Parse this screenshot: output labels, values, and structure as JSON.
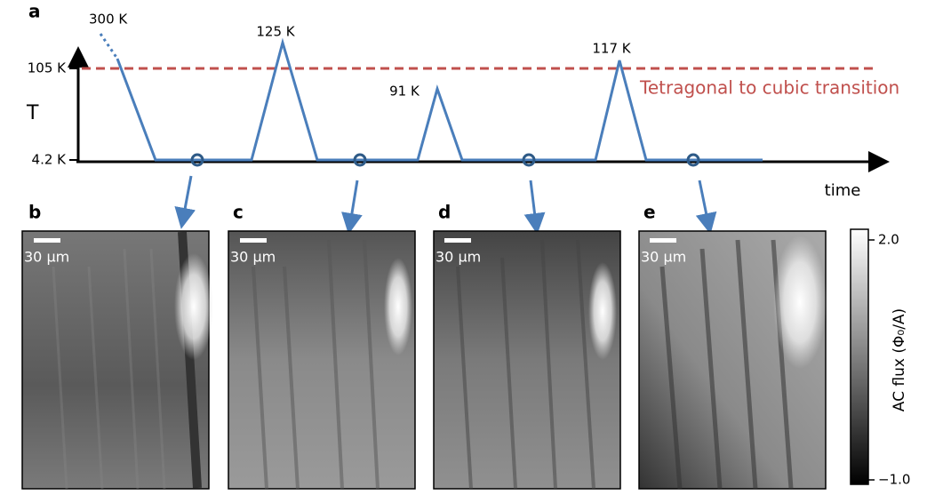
{
  "panel_labels": [
    "a",
    "b",
    "c",
    "d",
    "e"
  ],
  "timeline": {
    "y_axis_label": "T",
    "x_axis_label": "time",
    "y_ticks": [
      "105 K",
      "4.2 K"
    ],
    "peak_labels": [
      "300 K",
      "125 K",
      "91 K",
      "117 K"
    ],
    "transition_label": "Tetragonal to cubic transition"
  },
  "images": [
    {
      "scale_bar": "30 μm"
    },
    {
      "scale_bar": "30 μm"
    },
    {
      "scale_bar": "30 μm"
    },
    {
      "scale_bar": "30 μm"
    }
  ],
  "colorbar": {
    "label": "AC flux (Φ₀/A)",
    "max": "2.0",
    "min": "−1.0"
  }
}
